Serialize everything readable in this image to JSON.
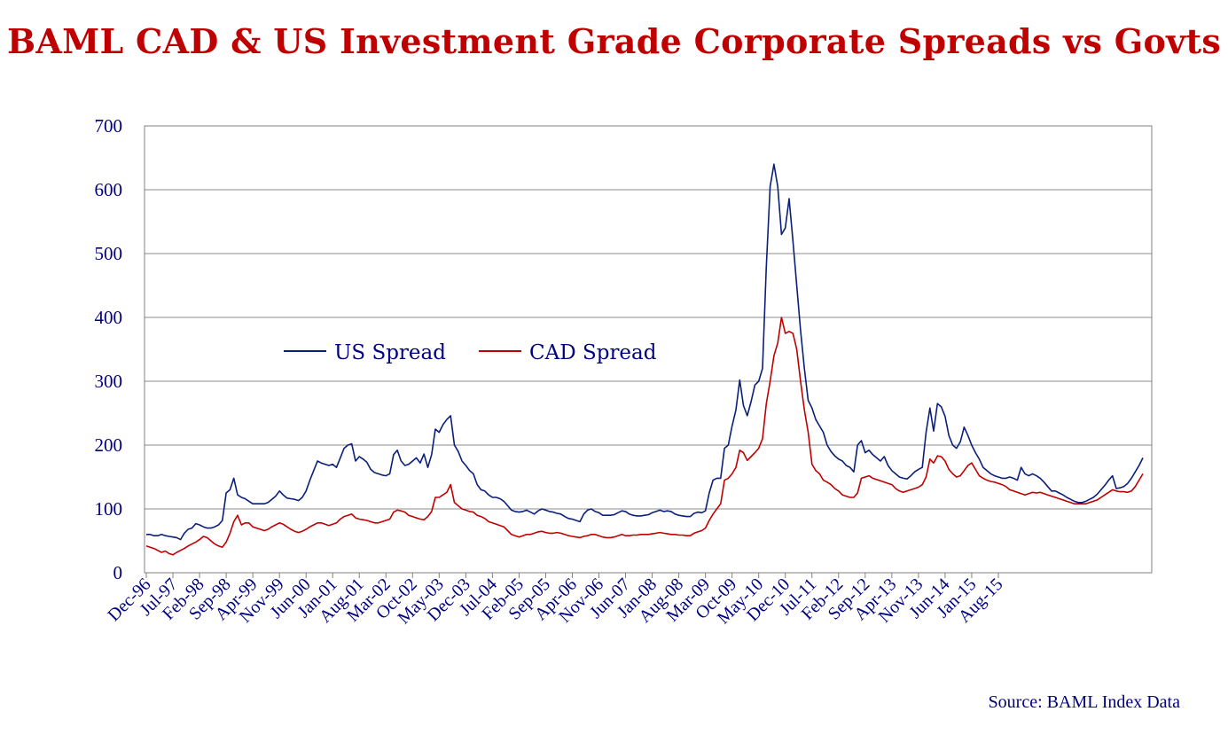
{
  "chart_data": {
    "type": "line",
    "title": "BAML CAD & US Investment Grade Corporate Spreads vs Govts",
    "source": "Source: BAML Index Data",
    "ylim": [
      0,
      700
    ],
    "yticks": [
      "0",
      "100",
      "200",
      "300",
      "400",
      "500",
      "600",
      "700"
    ],
    "xticks": [
      "Dec-96",
      "Jul-97",
      "Feb-98",
      "Sep-98",
      "Apr-99",
      "Nov-99",
      "Jun-00",
      "Jan-01",
      "Aug-01",
      "Mar-02",
      "Oct-02",
      "May-03",
      "Dec-03",
      "Jul-04",
      "Feb-05",
      "Sep-05",
      "Apr-06",
      "Nov-06",
      "Jun-07",
      "Jan-08",
      "Aug-08",
      "Mar-09",
      "Oct-09",
      "May-10",
      "Dec-10",
      "Jul-11",
      "Feb-12",
      "Sep-12",
      "Apr-13",
      "Nov-13",
      "Jun-14",
      "Jan-15",
      "Aug-15"
    ],
    "x_start": "Dec-96",
    "x_step": "1 month",
    "grid": true,
    "legend": "inside upper-left",
    "series": [
      {
        "name": "US Spread",
        "color": "#0a1f7a",
        "values": [
          60,
          60,
          58,
          58,
          60,
          58,
          57,
          56,
          55,
          52,
          62,
          68,
          70,
          77,
          75,
          72,
          70,
          70,
          72,
          75,
          82,
          125,
          130,
          148,
          122,
          118,
          116,
          112,
          108,
          108,
          108,
          108,
          110,
          115,
          120,
          128,
          122,
          117,
          116,
          115,
          113,
          118,
          128,
          145,
          160,
          175,
          172,
          170,
          168,
          170,
          165,
          180,
          195,
          200,
          202,
          175,
          182,
          178,
          173,
          162,
          157,
          155,
          153,
          152,
          155,
          185,
          192,
          175,
          168,
          170,
          175,
          180,
          172,
          186,
          165,
          185,
          225,
          220,
          232,
          240,
          246,
          200,
          190,
          175,
          168,
          160,
          155,
          138,
          130,
          128,
          122,
          118,
          118,
          116,
          112,
          105,
          98,
          96,
          95,
          96,
          98,
          95,
          92,
          97,
          100,
          98,
          96,
          95,
          93,
          92,
          88,
          85,
          84,
          82,
          80,
          92,
          98,
          100,
          96,
          94,
          90,
          90,
          90,
          91,
          94,
          97,
          96,
          92,
          90,
          89,
          89,
          90,
          91,
          94,
          96,
          98,
          96,
          97,
          96,
          92,
          90,
          89,
          88,
          88,
          93,
          95,
          94,
          97,
          125,
          145,
          148,
          148,
          195,
          200,
          230,
          255,
          302,
          262,
          246,
          268,
          294,
          300,
          320,
          480,
          605,
          640,
          605,
          530,
          540,
          586,
          520,
          450,
          380,
          320,
          270,
          258,
          240,
          230,
          220,
          200,
          190,
          183,
          178,
          175,
          168,
          165,
          158,
          200,
          207,
          188,
          192,
          185,
          180,
          175,
          182,
          168,
          160,
          155,
          150,
          148,
          147,
          152,
          158,
          162,
          165,
          220,
          258,
          222,
          265,
          260,
          245,
          215,
          200,
          195,
          205,
          228,
          215,
          200,
          188,
          178,
          165,
          160,
          155,
          152,
          150,
          148,
          148,
          150,
          148,
          145,
          165,
          155,
          152,
          155,
          152,
          148,
          142,
          135,
          128,
          128,
          125,
          122,
          118,
          115,
          112,
          110,
          110,
          112,
          115,
          118,
          123,
          130,
          137,
          145,
          152,
          132,
          133,
          135,
          140,
          148,
          158,
          168,
          180
        ]
      },
      {
        "name": "CAD Spread",
        "color": "#c00000",
        "values": [
          42,
          40,
          38,
          35,
          32,
          34,
          30,
          28,
          32,
          35,
          38,
          42,
          45,
          48,
          52,
          57,
          55,
          50,
          45,
          42,
          40,
          48,
          62,
          80,
          90,
          75,
          78,
          78,
          72,
          70,
          68,
          66,
          68,
          72,
          75,
          78,
          76,
          72,
          68,
          65,
          63,
          65,
          68,
          72,
          75,
          78,
          78,
          76,
          74,
          76,
          78,
          84,
          88,
          90,
          92,
          86,
          84,
          83,
          82,
          80,
          78,
          78,
          80,
          82,
          84,
          95,
          98,
          97,
          95,
          90,
          88,
          86,
          84,
          83,
          88,
          96,
          118,
          118,
          122,
          126,
          138,
          110,
          105,
          100,
          98,
          96,
          95,
          90,
          88,
          85,
          80,
          78,
          76,
          74,
          72,
          66,
          60,
          58,
          56,
          58,
          60,
          60,
          62,
          64,
          65,
          63,
          62,
          62,
          63,
          62,
          60,
          58,
          57,
          56,
          55,
          57,
          58,
          60,
          60,
          58,
          56,
          55,
          55,
          56,
          58,
          60,
          58,
          58,
          59,
          59,
          60,
          60,
          60,
          61,
          62,
          63,
          62,
          61,
          60,
          60,
          59,
          59,
          58,
          58,
          62,
          64,
          66,
          70,
          82,
          92,
          100,
          108,
          145,
          148,
          155,
          165,
          192,
          188,
          176,
          182,
          188,
          195,
          210,
          265,
          300,
          340,
          360,
          400,
          375,
          378,
          375,
          350,
          300,
          255,
          220,
          170,
          160,
          155,
          145,
          142,
          138,
          132,
          128,
          122,
          120,
          118,
          118,
          125,
          148,
          150,
          152,
          148,
          146,
          144,
          142,
          140,
          138,
          132,
          128,
          126,
          128,
          130,
          132,
          134,
          138,
          150,
          178,
          172,
          183,
          182,
          175,
          162,
          155,
          150,
          152,
          160,
          168,
          172,
          162,
          152,
          148,
          145,
          143,
          142,
          140,
          138,
          135,
          130,
          128,
          126,
          124,
          122,
          124,
          126,
          125,
          126,
          124,
          122,
          120,
          118,
          116,
          114,
          112,
          110,
          108,
          108,
          108,
          108,
          110,
          112,
          114,
          118,
          122,
          126,
          130,
          128,
          127,
          127,
          126,
          128,
          135,
          145,
          155
        ]
      }
    ]
  }
}
